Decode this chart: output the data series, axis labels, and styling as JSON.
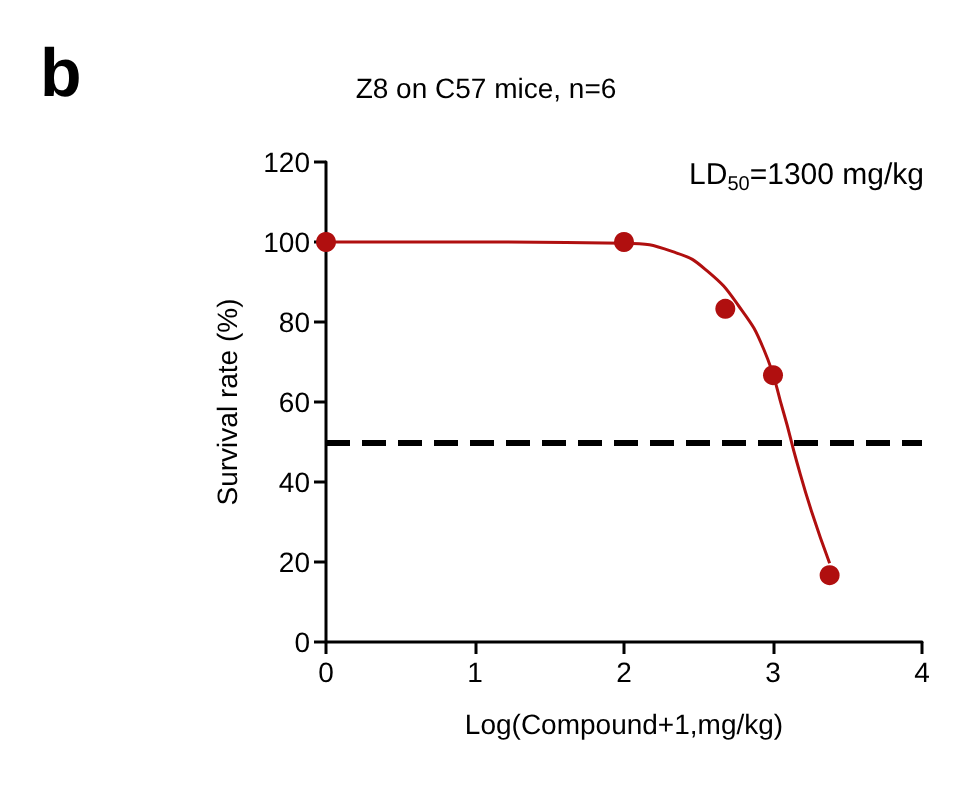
{
  "chart_data": {
    "type": "scatter",
    "title": "Z8 on C57 mice, n=6",
    "xlabel": "Log(Compound+1,mg/kg)",
    "ylabel": "Survival rate (%)",
    "annotations": [
      "b",
      "LD$_{50}$=1300 mg/kg"
    ],
    "series": [
      {
        "color": "#b00f0f",
        "marker": "circle",
        "x": [
          0,
          2,
          2.68,
          3,
          3.38
        ],
        "values": [
          100,
          100,
          83.3,
          66.7,
          16.7
        ]
      },
      {
        "type": "line",
        "color": "#b00f0f",
        "marker": "none",
        "line_style": "solid",
        "x": [
          0,
          1,
          2,
          2.35,
          2.56,
          2.77,
          2.94,
          3.07,
          3.16,
          3.26,
          3.38
        ],
        "values": [
          100,
          100,
          99.7,
          97.3,
          92.7,
          84,
          73,
          57.5,
          45,
          32.5,
          19.7
        ]
      }
    ],
    "ref_lines": [
      {
        "axis": "y",
        "value": 50,
        "color": "#000000",
        "line_style": "dashed"
      }
    ],
    "xlim": [
      0,
      4
    ],
    "xticks": [
      0,
      1,
      2,
      3,
      4
    ],
    "ylim": [
      0,
      120
    ],
    "yticks": [
      0,
      20,
      40,
      60,
      80,
      100,
      120
    ],
    "grid": false
  }
}
